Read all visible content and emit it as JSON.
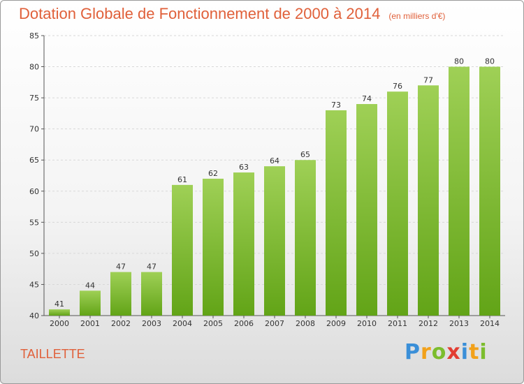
{
  "header": {
    "title": "Dotation Globale de Fonctionnement de 2000 à 2014",
    "subtitle": "(en milliers d'€)"
  },
  "footer": {
    "place": "TAILLETTE",
    "logo": "Proxiti"
  },
  "colors": {
    "bar_top": "#9fd056",
    "bar_bottom": "#62a417",
    "title": "#e0603a"
  },
  "chart_data": {
    "type": "bar",
    "title": "Dotation Globale de Fonctionnement de 2000 à 2014",
    "subtitle": "(en milliers d'€)",
    "categories": [
      "2000",
      "2001",
      "2002",
      "2003",
      "2004",
      "2005",
      "2006",
      "2007",
      "2008",
      "2009",
      "2010",
      "2011",
      "2012",
      "2013",
      "2014"
    ],
    "values": [
      41,
      44,
      47,
      47,
      61,
      62,
      63,
      64,
      65,
      73,
      74,
      76,
      77,
      80,
      80
    ],
    "ylim": [
      40,
      85
    ],
    "yticks": [
      40,
      45,
      50,
      55,
      60,
      65,
      70,
      75,
      80,
      85
    ],
    "grid": true,
    "legend": "none"
  }
}
